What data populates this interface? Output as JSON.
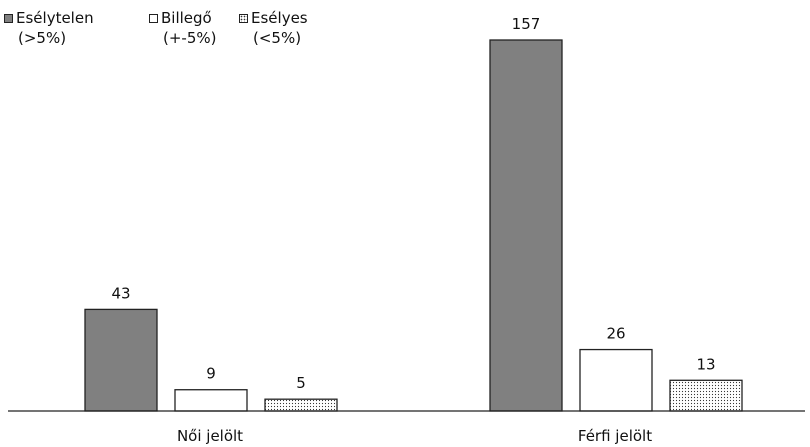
{
  "chart_data": {
    "type": "bar",
    "categories": [
      "Női jelölt",
      "Férfi jelölt"
    ],
    "series": [
      {
        "name": "Esélytelen",
        "name_sub": "(>5%)",
        "values": [
          43,
          157
        ],
        "color": "#808080",
        "pattern": "solid"
      },
      {
        "name": "Billegő",
        "name_sub": "(+-5%)",
        "values": [
          9,
          26
        ],
        "color": "#ffffff",
        "pattern": "solid"
      },
      {
        "name": "Esélyes",
        "name_sub": "(<5%)",
        "values": [
          5,
          13
        ],
        "color": "#ffffff",
        "pattern": "dotted"
      }
    ],
    "title": "",
    "xlabel": "",
    "ylabel": "",
    "ylim": [
      0,
      157
    ],
    "grid": false,
    "legend_position": "top-left",
    "data_labels": true
  }
}
